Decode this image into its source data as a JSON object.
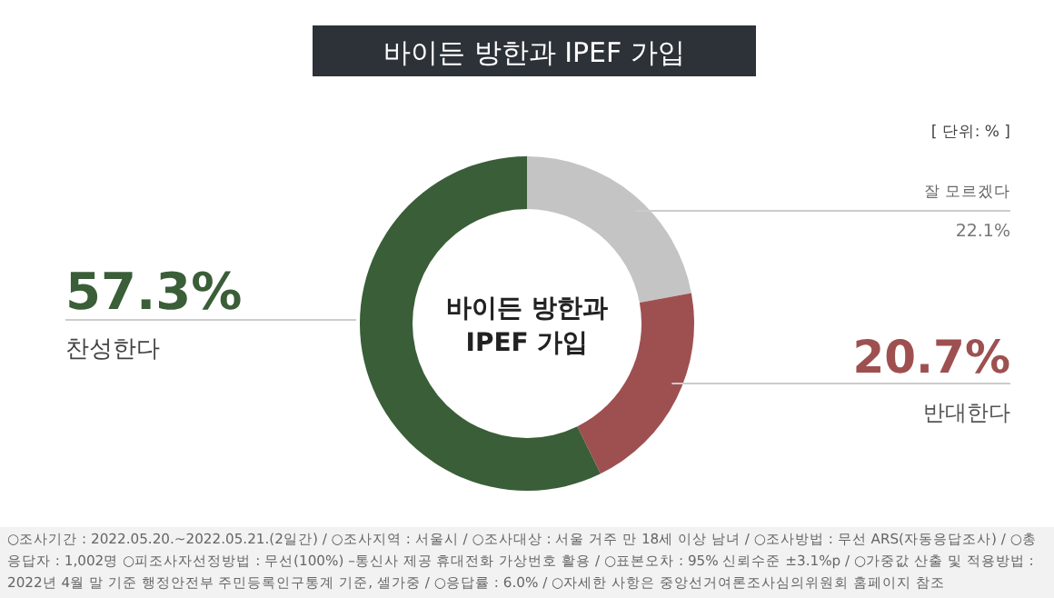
{
  "chart_data": {
    "type": "donut",
    "title": "바이든 방한과 IPEF 가입",
    "categories": [
      "잘 모르겠다",
      "반대한다",
      "찬성한다"
    ],
    "values": [
      22.1,
      20.7,
      57.3
    ],
    "colors": [
      "#c4c4c4",
      "#9e5050",
      "#3a5e38"
    ],
    "value_labels": [
      "22.1%",
      "20.7%",
      "57.3%"
    ],
    "annotations": [
      "[ 단위: % ]",
      "바이든 방한과 IPEF 가입",
      "○조사기간 : 2022.05.20.~2022.05.21.(2일간) / ○조사지역 : 서울시 / ○조사대상 : 서울 거주 만 18세 이상 남녀 / ○조사방법 : 무선 ARS(자동응답조사) / ○총응답자 : 1,002명 ○피조사자선정방법 : 무선(100%) –통신사 제공 휴대전화 가상번호 활용 / ○표본오차 : 95% 신뢰수준 ±3.1%p / ○가중값 산출 및 적용방법 : 2022년 4월 말 기준 행정안전부 주민등록인구통계 기준, 셀가중 / ○응답률 : 6.0% / ○자세한 사항은 중앙선거여론조사심의위원회 홈페이지 참조"
    ]
  }
}
